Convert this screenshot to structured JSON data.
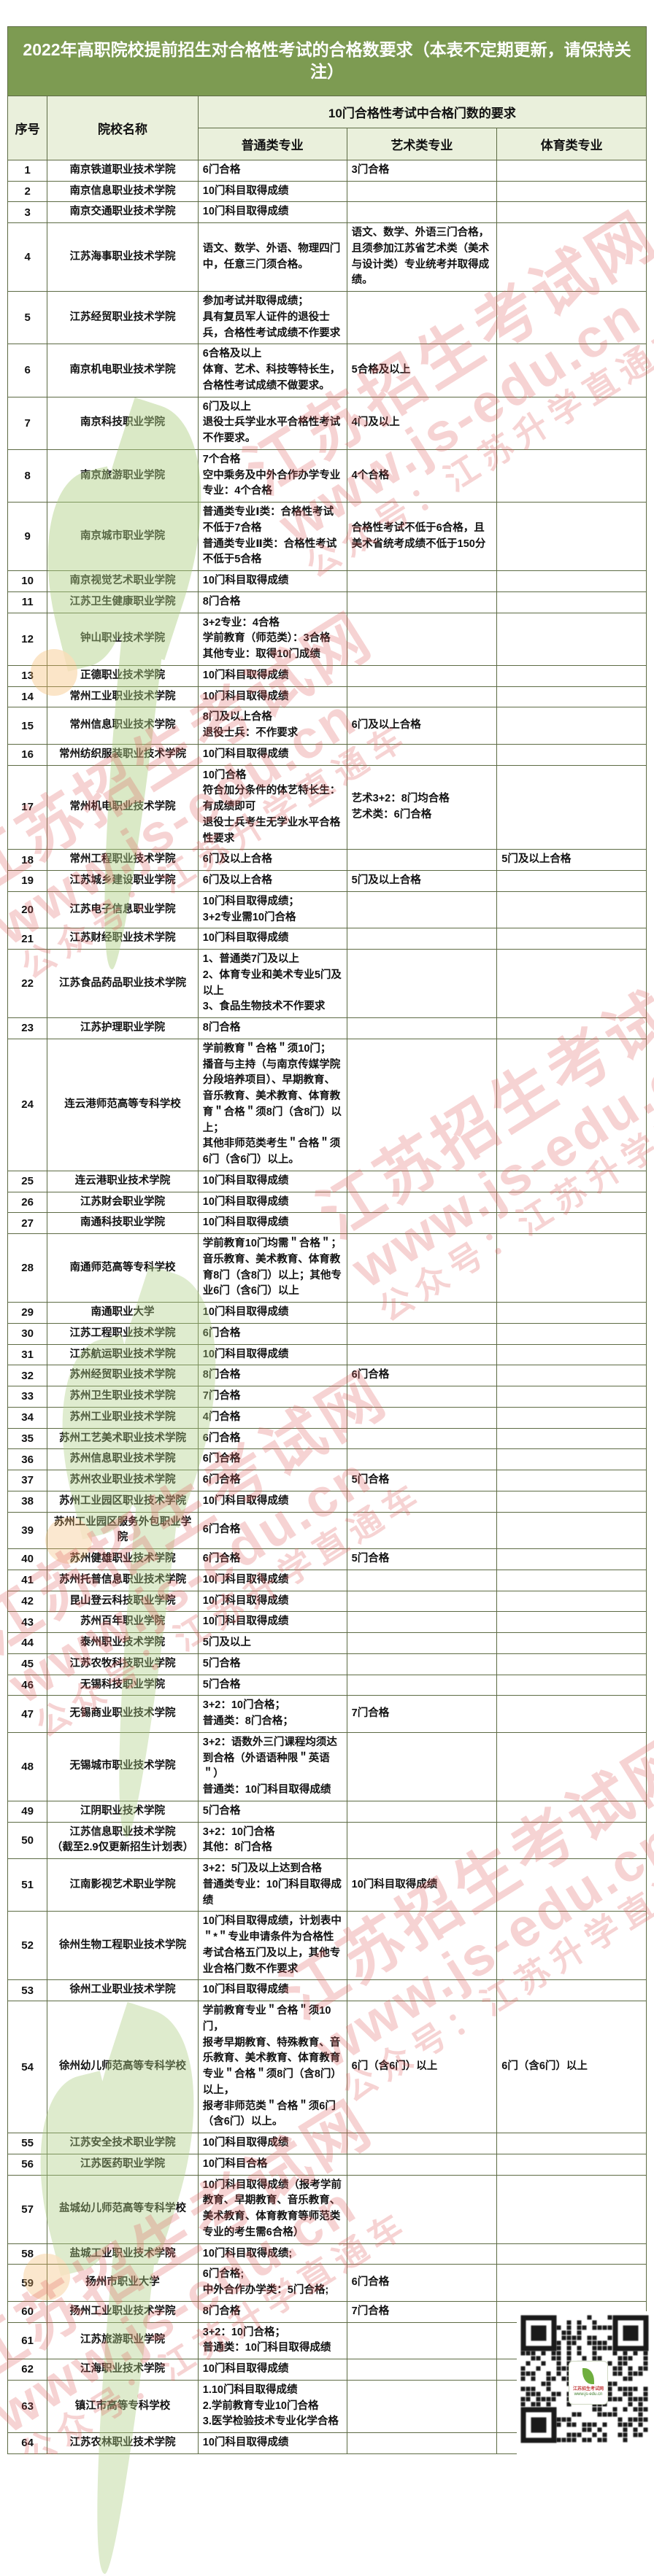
{
  "title": "2022年高职院校提前招生对合格性考试的合格数要求（本表不定期更新，请保持关注）",
  "table": {
    "headers": {
      "no": "序号",
      "school": "院校名称",
      "group": "10门合格性考试中合格门数的要求",
      "general": "普通类专业",
      "art": "艺术类专业",
      "sports": "体育类专业"
    },
    "rows": [
      {
        "no": "1",
        "school": "南京铁道职业技术学院",
        "general": "6门合格",
        "art": "3门合格",
        "sports": ""
      },
      {
        "no": "2",
        "school": "南京信息职业技术学院",
        "general": "10门科目取得成绩",
        "art": "",
        "sports": ""
      },
      {
        "no": "3",
        "school": "南京交通职业技术学院",
        "general": "10门科目取得成绩",
        "art": "",
        "sports": ""
      },
      {
        "no": "4",
        "school": "江苏海事职业技术学院",
        "general": "语文、数学、外语、物理四门中，任意三门须合格。",
        "art": "语文、数学、外语三门合格，且须参加江苏省艺术类（美术与设计类）专业统考并取得成绩。",
        "sports": ""
      },
      {
        "no": "5",
        "school": "江苏经贸职业技术学院",
        "general": "参加考试并取得成绩；\n具有复员军人证件的退役士兵，合格性考试成绩不作要求",
        "art": "",
        "sports": ""
      },
      {
        "no": "6",
        "school": "南京机电职业技术学院",
        "general": "6合格及以上\n体育、艺术、科技等特长生，合格性考试成绩不做要求。",
        "art": "5合格及以上",
        "sports": ""
      },
      {
        "no": "7",
        "school": "南京科技职业学院",
        "general": "6门及以上\n退役士兵学业水平合格性考试不作要求。",
        "art": "4门及以上",
        "sports": ""
      },
      {
        "no": "8",
        "school": "南京旅游职业学院",
        "general": "7个合格\n空中乘务及中外合作办学专业专业：4个合格",
        "art": "4个合格",
        "sports": ""
      },
      {
        "no": "9",
        "school": "南京城市职业学院",
        "general": "普通类专业Ⅰ类：合格性考试不低于7合格\n普通类专业Ⅱ类：合格性考试不低于5合格",
        "art": "合格性考试不低于6合格，且美术省统考成绩不低于150分",
        "sports": ""
      },
      {
        "no": "10",
        "school": "南京视觉艺术职业学院",
        "general": "10门科目取得成绩",
        "art": "",
        "sports": ""
      },
      {
        "no": "11",
        "school": "江苏卫生健康职业学院",
        "general": "8门合格",
        "art": "",
        "sports": ""
      },
      {
        "no": "12",
        "school": "钟山职业技术学院",
        "general": "3+2专业：4合格\n学前教育（师范类）：3合格\n其他专业：取得10门成绩",
        "art": "",
        "sports": ""
      },
      {
        "no": "13",
        "school": "正德职业技术学院",
        "general": "10门科目取得成绩",
        "art": "",
        "sports": ""
      },
      {
        "no": "14",
        "school": "常州工业职业技术学院",
        "general": "10门科目取得成绩",
        "art": "",
        "sports": ""
      },
      {
        "no": "15",
        "school": "常州信息职业技术学院",
        "general": "8门及以上合格\n退役士兵：不作要求",
        "art": "6门及以上合格",
        "sports": ""
      },
      {
        "no": "16",
        "school": "常州纺织服装职业技术学院",
        "general": "10门科目取得成绩",
        "art": "",
        "sports": ""
      },
      {
        "no": "17",
        "school": "常州机电职业技术学院",
        "general": "10门合格\n符合加分条件的体艺特长生：有成绩即可\n退役士兵考生无学业水平合格性要求",
        "art": "艺术3+2：8门均合格\n艺术类：6门合格",
        "sports": ""
      },
      {
        "no": "18",
        "school": "常州工程职业技术学院",
        "general": "6门及以上合格",
        "art": "",
        "sports": "5门及以上合格"
      },
      {
        "no": "19",
        "school": "江苏城乡建设职业学院",
        "general": "6门及以上合格",
        "art": "5门及以上合格",
        "sports": ""
      },
      {
        "no": "20",
        "school": "江苏电子信息职业学院",
        "general": "10门科目取得成绩；\n3+2专业需10门合格",
        "art": "",
        "sports": ""
      },
      {
        "no": "21",
        "school": "江苏财经职业技术学院",
        "general": "10门科目取得成绩",
        "art": "",
        "sports": ""
      },
      {
        "no": "22",
        "school": "江苏食品药品职业技术学院",
        "general": "1、普通类7门及以上\n2、体育专业和美术专业5门及以上\n3、食品生物技术不作要求",
        "art": "",
        "sports": ""
      },
      {
        "no": "23",
        "school": "江苏护理职业学院",
        "general": "8门合格",
        "art": "",
        "sports": ""
      },
      {
        "no": "24",
        "school": "连云港师范高等专科学校",
        "general": "学前教育＂合格＂须10门；\n播音与主持（与南京传媒学院分段培养项目）、早期教育、音乐教育、美术教育、体育教育＂合格＂须8门（含8门）以上；\n其他非师范类考生＂合格＂须6门（含6门）以上。",
        "art": "",
        "sports": ""
      },
      {
        "no": "25",
        "school": "连云港职业技术学院",
        "general": "10门科目取得成绩",
        "art": "",
        "sports": ""
      },
      {
        "no": "26",
        "school": "江苏财会职业学院",
        "general": "10门科目取得成绩",
        "art": "",
        "sports": ""
      },
      {
        "no": "27",
        "school": "南通科技职业学院",
        "general": "10门科目取得成绩",
        "art": "",
        "sports": ""
      },
      {
        "no": "28",
        "school": "南通师范高等专科学校",
        "general": "学前教育10门均需＂合格＂；音乐教育、美术教育、体育教育8门（含8门）以上；其他专业6门（含6门）以上",
        "art": "",
        "sports": ""
      },
      {
        "no": "29",
        "school": "南通职业大学",
        "general": "10门科目取得成绩",
        "art": "",
        "sports": ""
      },
      {
        "no": "30",
        "school": "江苏工程职业技术学院",
        "general": "6门合格",
        "art": "",
        "sports": ""
      },
      {
        "no": "31",
        "school": "江苏航运职业技术学院",
        "general": "10门科目取得成绩",
        "art": "",
        "sports": ""
      },
      {
        "no": "32",
        "school": "苏州经贸职业技术学院",
        "general": "8门合格",
        "art": "6门合格",
        "sports": ""
      },
      {
        "no": "33",
        "school": "苏州卫生职业技术学院",
        "general": "7门合格",
        "art": "",
        "sports": ""
      },
      {
        "no": "34",
        "school": "苏州工业职业技术学院",
        "general": "4门合格",
        "art": "",
        "sports": ""
      },
      {
        "no": "35",
        "school": "苏州工艺美术职业技术学院",
        "general": "6门合格",
        "art": "",
        "sports": ""
      },
      {
        "no": "36",
        "school": "苏州信息职业技术学院",
        "general": "6门合格",
        "art": "",
        "sports": ""
      },
      {
        "no": "37",
        "school": "苏州农业职业技术学院",
        "general": "6门合格",
        "art": "5门合格",
        "sports": ""
      },
      {
        "no": "38",
        "school": "苏州工业园区职业技术学院",
        "general": "10门科目取得成绩",
        "art": "",
        "sports": ""
      },
      {
        "no": "39",
        "school": "苏州工业园区服务外包职业学院",
        "general": "6门合格",
        "art": "",
        "sports": ""
      },
      {
        "no": "40",
        "school": "苏州健雄职业技术学院",
        "general": "6门合格",
        "art": "5门合格",
        "sports": ""
      },
      {
        "no": "41",
        "school": "苏州托普信息职业技术学院",
        "general": "10门科目取得成绩",
        "art": "",
        "sports": ""
      },
      {
        "no": "42",
        "school": "昆山登云科技职业学院",
        "general": "10门科目取得成绩",
        "art": "",
        "sports": ""
      },
      {
        "no": "43",
        "school": "苏州百年职业学院",
        "general": "10门科目取得成绩",
        "art": "",
        "sports": ""
      },
      {
        "no": "44",
        "school": "泰州职业技术学院",
        "general": "5门及以上",
        "art": "",
        "sports": ""
      },
      {
        "no": "45",
        "school": "江苏农牧科技职业学院",
        "general": "5门合格",
        "art": "",
        "sports": ""
      },
      {
        "no": "46",
        "school": "无锡科技职业学院",
        "general": "5门合格",
        "art": "",
        "sports": ""
      },
      {
        "no": "47",
        "school": "无锡商业职业技术学院",
        "general": "3+2：10门合格；\n普通类：8门合格；",
        "art": "7门合格",
        "sports": ""
      },
      {
        "no": "48",
        "school": "无锡城市职业技术学院",
        "general": "3+2：语数外三门课程均须达到合格（外语语种限＂英语＂）\n普通类：10门科目取得成绩",
        "art": "",
        "sports": ""
      },
      {
        "no": "49",
        "school": "江阴职业技术学院",
        "general": "5门合格",
        "art": "",
        "sports": ""
      },
      {
        "no": "50",
        "school": "江苏信息职业技术学院\n（截至2.9仅更新招生计划表）",
        "general": "3+2：10门合格\n其他：8门合格",
        "art": "",
        "sports": ""
      },
      {
        "no": "51",
        "school": "江南影视艺术职业学院",
        "general": "3+2：5门及以上达到合格\n普通类专业：10门科目取得成绩",
        "art": "10门科目取得成绩",
        "sports": ""
      },
      {
        "no": "52",
        "school": "徐州生物工程职业技术学院",
        "general": "10门科目取得成绩，计划表中＂*＂专业申请条件为合格性考试合格五门及以上，其他专业合格门数不作要求",
        "art": "",
        "sports": ""
      },
      {
        "no": "53",
        "school": "徐州工业职业技术学院",
        "general": "10门科目取得成绩",
        "art": "",
        "sports": ""
      },
      {
        "no": "54",
        "school": "徐州幼儿师范高等专科学校",
        "general": "学前教育专业＂合格＂须10门，\n报考早期教育、特殊教育、音乐教育、美术教育、体育教育专业＂合格＂须8门（含8门）以上，\n报考非师范类＂合格＂须6门（含6门）以上。",
        "art": "6门（含6门）以上",
        "sports": "6门（含6门）以上"
      },
      {
        "no": "55",
        "school": "江苏安全技术职业学院",
        "general": "10门科目取得成绩",
        "art": "",
        "sports": ""
      },
      {
        "no": "56",
        "school": "江苏医药职业学院",
        "general": "10门科目合格",
        "art": "",
        "sports": ""
      },
      {
        "no": "57",
        "school": "盐城幼儿师范高等专科学校",
        "general": "10门科目取得成绩（报考学前教育、早期教育、音乐教育、美术教育、体育教育等师范类专业的考生需6合格）",
        "art": "",
        "sports": ""
      },
      {
        "no": "58",
        "school": "盐城工业职业技术学院",
        "general": "10门科目取得成绩;",
        "art": "",
        "sports": ""
      },
      {
        "no": "59",
        "school": "扬州市职业大学",
        "general": "6门合格;\n中外合作办学类：5门合格;",
        "art": "6门合格",
        "sports": ""
      },
      {
        "no": "60",
        "school": "扬州工业职业技术学院",
        "general": "8门合格",
        "art": "7门合格",
        "sports": ""
      },
      {
        "no": "61",
        "school": "江苏旅游职业学院",
        "general": "3+2：10门合格；\n普通类：10门科目取得成绩",
        "art": "",
        "sports": ""
      },
      {
        "no": "62",
        "school": "江海职业技术学院",
        "general": "10门科目取得成绩",
        "art": "",
        "sports": ""
      },
      {
        "no": "63",
        "school": "镇江市高等专科学校",
        "general": "1.10门科目取得成绩\n2.学前教育专业10门合格\n3.医学检验技术专业化学合格",
        "art": "",
        "sports": ""
      },
      {
        "no": "64",
        "school": "江苏农林职业技术学院",
        "general": "10门科目取得成绩",
        "art": "",
        "sports": ""
      }
    ]
  },
  "watermark": {
    "site_name": "江苏招生考试网",
    "site_url": "www.js-edu.cn",
    "wechat": "公众号：江苏升学直通车"
  },
  "qr": {
    "caption_site": "江苏招生考试网",
    "caption_url": "www.js-edu.cn"
  },
  "colors": {
    "title_bar_green": "#7d9b52",
    "header_bg_green": "#eaf0dc",
    "table_border": "#5d6b44",
    "watermark_red": "#e05a5a",
    "watermark_green": "#aecf83",
    "watermark_orange": "#f2b565"
  }
}
